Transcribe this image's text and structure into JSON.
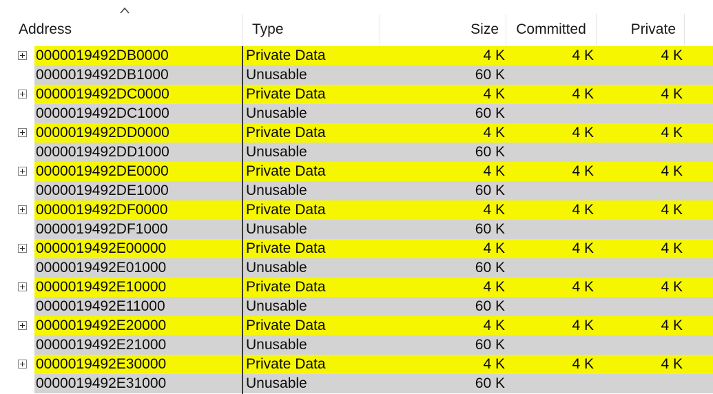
{
  "columns": {
    "address": "Address",
    "type": "Type",
    "size": "Size",
    "committed": "Committed",
    "private": "Private"
  },
  "sort": {
    "column": "Address",
    "icon": "sort-ascending-caret-icon"
  },
  "colors": {
    "parent_row": "#f6f600",
    "child_row": "#d3d3d3"
  },
  "rows": [
    {
      "kind": "parent",
      "address": "0000019492DB0000",
      "type": "Private Data",
      "size": "4 K",
      "committed": "4 K",
      "private": "4 K"
    },
    {
      "kind": "child",
      "address": "0000019492DB1000",
      "type": "Unusable",
      "size": "60 K",
      "committed": "",
      "private": ""
    },
    {
      "kind": "parent",
      "address": "0000019492DC0000",
      "type": "Private Data",
      "size": "4 K",
      "committed": "4 K",
      "private": "4 K"
    },
    {
      "kind": "child",
      "address": "0000019492DC1000",
      "type": "Unusable",
      "size": "60 K",
      "committed": "",
      "private": ""
    },
    {
      "kind": "parent",
      "address": "0000019492DD0000",
      "type": "Private Data",
      "size": "4 K",
      "committed": "4 K",
      "private": "4 K"
    },
    {
      "kind": "child",
      "address": "0000019492DD1000",
      "type": "Unusable",
      "size": "60 K",
      "committed": "",
      "private": ""
    },
    {
      "kind": "parent",
      "address": "0000019492DE0000",
      "type": "Private Data",
      "size": "4 K",
      "committed": "4 K",
      "private": "4 K"
    },
    {
      "kind": "child",
      "address": "0000019492DE1000",
      "type": "Unusable",
      "size": "60 K",
      "committed": "",
      "private": ""
    },
    {
      "kind": "parent",
      "address": "0000019492DF0000",
      "type": "Private Data",
      "size": "4 K",
      "committed": "4 K",
      "private": "4 K"
    },
    {
      "kind": "child",
      "address": "0000019492DF1000",
      "type": "Unusable",
      "size": "60 K",
      "committed": "",
      "private": ""
    },
    {
      "kind": "parent",
      "address": "0000019492E00000",
      "type": "Private Data",
      "size": "4 K",
      "committed": "4 K",
      "private": "4 K"
    },
    {
      "kind": "child",
      "address": "0000019492E01000",
      "type": "Unusable",
      "size": "60 K",
      "committed": "",
      "private": ""
    },
    {
      "kind": "parent",
      "address": "0000019492E10000",
      "type": "Private Data",
      "size": "4 K",
      "committed": "4 K",
      "private": "4 K"
    },
    {
      "kind": "child",
      "address": "0000019492E11000",
      "type": "Unusable",
      "size": "60 K",
      "committed": "",
      "private": ""
    },
    {
      "kind": "parent",
      "address": "0000019492E20000",
      "type": "Private Data",
      "size": "4 K",
      "committed": "4 K",
      "private": "4 K"
    },
    {
      "kind": "child",
      "address": "0000019492E21000",
      "type": "Unusable",
      "size": "60 K",
      "committed": "",
      "private": ""
    },
    {
      "kind": "parent",
      "address": "0000019492E30000",
      "type": "Private Data",
      "size": "4 K",
      "committed": "4 K",
      "private": "4 K"
    },
    {
      "kind": "child",
      "address": "0000019492E31000",
      "type": "Unusable",
      "size": "60 K",
      "committed": "",
      "private": ""
    }
  ]
}
